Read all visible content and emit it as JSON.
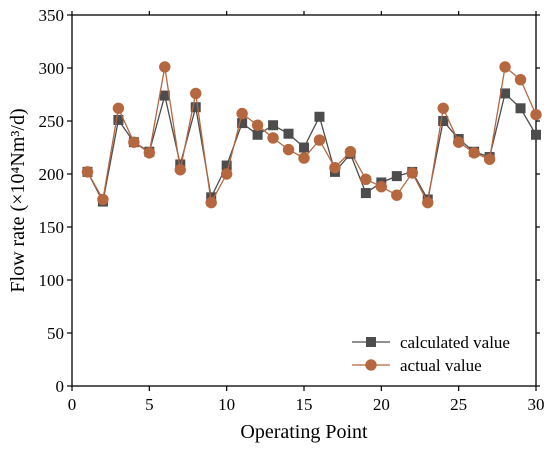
{
  "chart_data": {
    "type": "line",
    "xlabel": "Operating Point",
    "ylabel": "Flow rate (×10⁴Nm³/d)",
    "xlim": [
      0,
      30
    ],
    "ylim": [
      0,
      350
    ],
    "xticks": [
      0,
      5,
      10,
      15,
      20,
      25,
      30
    ],
    "yticks": [
      0,
      50,
      100,
      150,
      200,
      250,
      300,
      350
    ],
    "grid": false,
    "legend_position": "bottom-right",
    "x": [
      1,
      2,
      3,
      4,
      5,
      6,
      7,
      8,
      9,
      10,
      11,
      12,
      13,
      14,
      15,
      16,
      17,
      18,
      19,
      20,
      21,
      22,
      23,
      24,
      25,
      26,
      27,
      28,
      29,
      30
    ],
    "series": [
      {
        "name": "calculated value",
        "marker": "square",
        "color": "#4d4d4d",
        "values": [
          202,
          174,
          251,
          230,
          221,
          274,
          209,
          263,
          178,
          208,
          248,
          237,
          246,
          238,
          225,
          254,
          202,
          219,
          182,
          192,
          198,
          202,
          176,
          250,
          233,
          221,
          216,
          276,
          262,
          237
        ]
      },
      {
        "name": "actual value",
        "marker": "circle",
        "color": "#b5673f",
        "values": [
          202,
          176,
          262,
          230,
          220,
          301,
          204,
          276,
          173,
          200,
          257,
          246,
          234,
          223,
          215,
          232,
          206,
          221,
          195,
          188,
          180,
          201,
          173,
          262,
          230,
          220,
          214,
          301,
          289,
          256
        ]
      }
    ]
  }
}
